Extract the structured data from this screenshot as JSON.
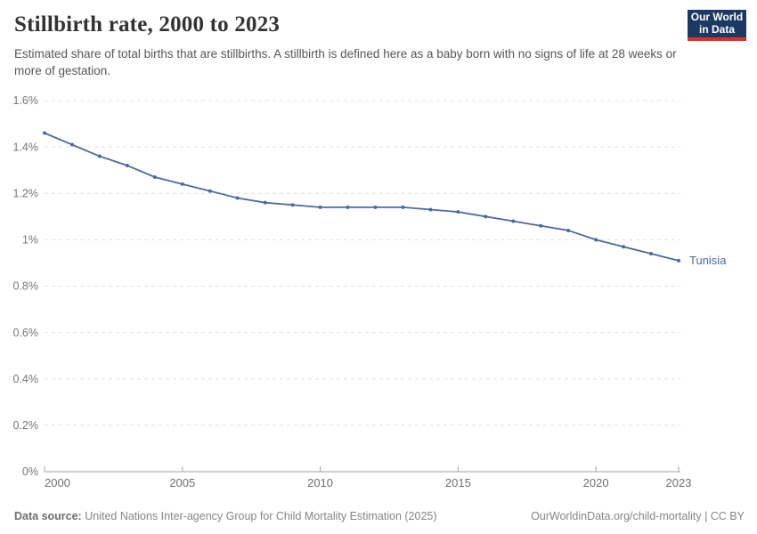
{
  "header": {
    "title": "Stillbirth rate, 2000 to 2023",
    "subtitle": "Estimated share of total births that are stillbirths. A stillbirth is defined here as a baby born with no signs of life at 28 weeks or more of gestation."
  },
  "logo": {
    "line1": "Our World",
    "line2": "in Data",
    "bg_color": "#1b3a63",
    "accent_color": "#dc3127"
  },
  "chart_data": {
    "type": "line",
    "title": "Stillbirth rate, 2000 to 2023",
    "xlabel": "",
    "ylabel": "",
    "unit": "%",
    "x": [
      2000,
      2001,
      2002,
      2003,
      2004,
      2005,
      2006,
      2007,
      2008,
      2009,
      2010,
      2011,
      2012,
      2013,
      2014,
      2015,
      2016,
      2017,
      2018,
      2019,
      2020,
      2021,
      2022,
      2023
    ],
    "series": [
      {
        "name": "Tunisia",
        "color": "#4c6a9c",
        "values": [
          1.46,
          1.41,
          1.36,
          1.32,
          1.27,
          1.24,
          1.21,
          1.18,
          1.16,
          1.15,
          1.14,
          1.14,
          1.14,
          1.14,
          1.13,
          1.12,
          1.1,
          1.08,
          1.06,
          1.04,
          1.0,
          0.97,
          0.94,
          0.91
        ]
      }
    ],
    "ylim": [
      0,
      1.6
    ],
    "yticks": [
      0,
      0.2,
      0.4,
      0.6,
      0.8,
      1.0,
      1.2,
      1.4,
      1.6
    ],
    "ytick_labels": [
      "0%",
      "0.2%",
      "0.4%",
      "0.6%",
      "0.8%",
      "1%",
      "1.2%",
      "1.4%",
      "1.6%"
    ],
    "xticks": [
      2000,
      2005,
      2010,
      2015,
      2020,
      2023
    ],
    "grid": "horizontal-dashed",
    "legend": "end-of-line-label",
    "grid_color": "#e0e0e0",
    "axis_color": "#a3a3a3",
    "tick_label_color": "#757575"
  },
  "footer": {
    "source_label": "Data source:",
    "source_text": "United Nations Inter-agency Group for Child Mortality Estimation (2025)",
    "right_text": "OurWorldinData.org/child-mortality | CC BY"
  }
}
